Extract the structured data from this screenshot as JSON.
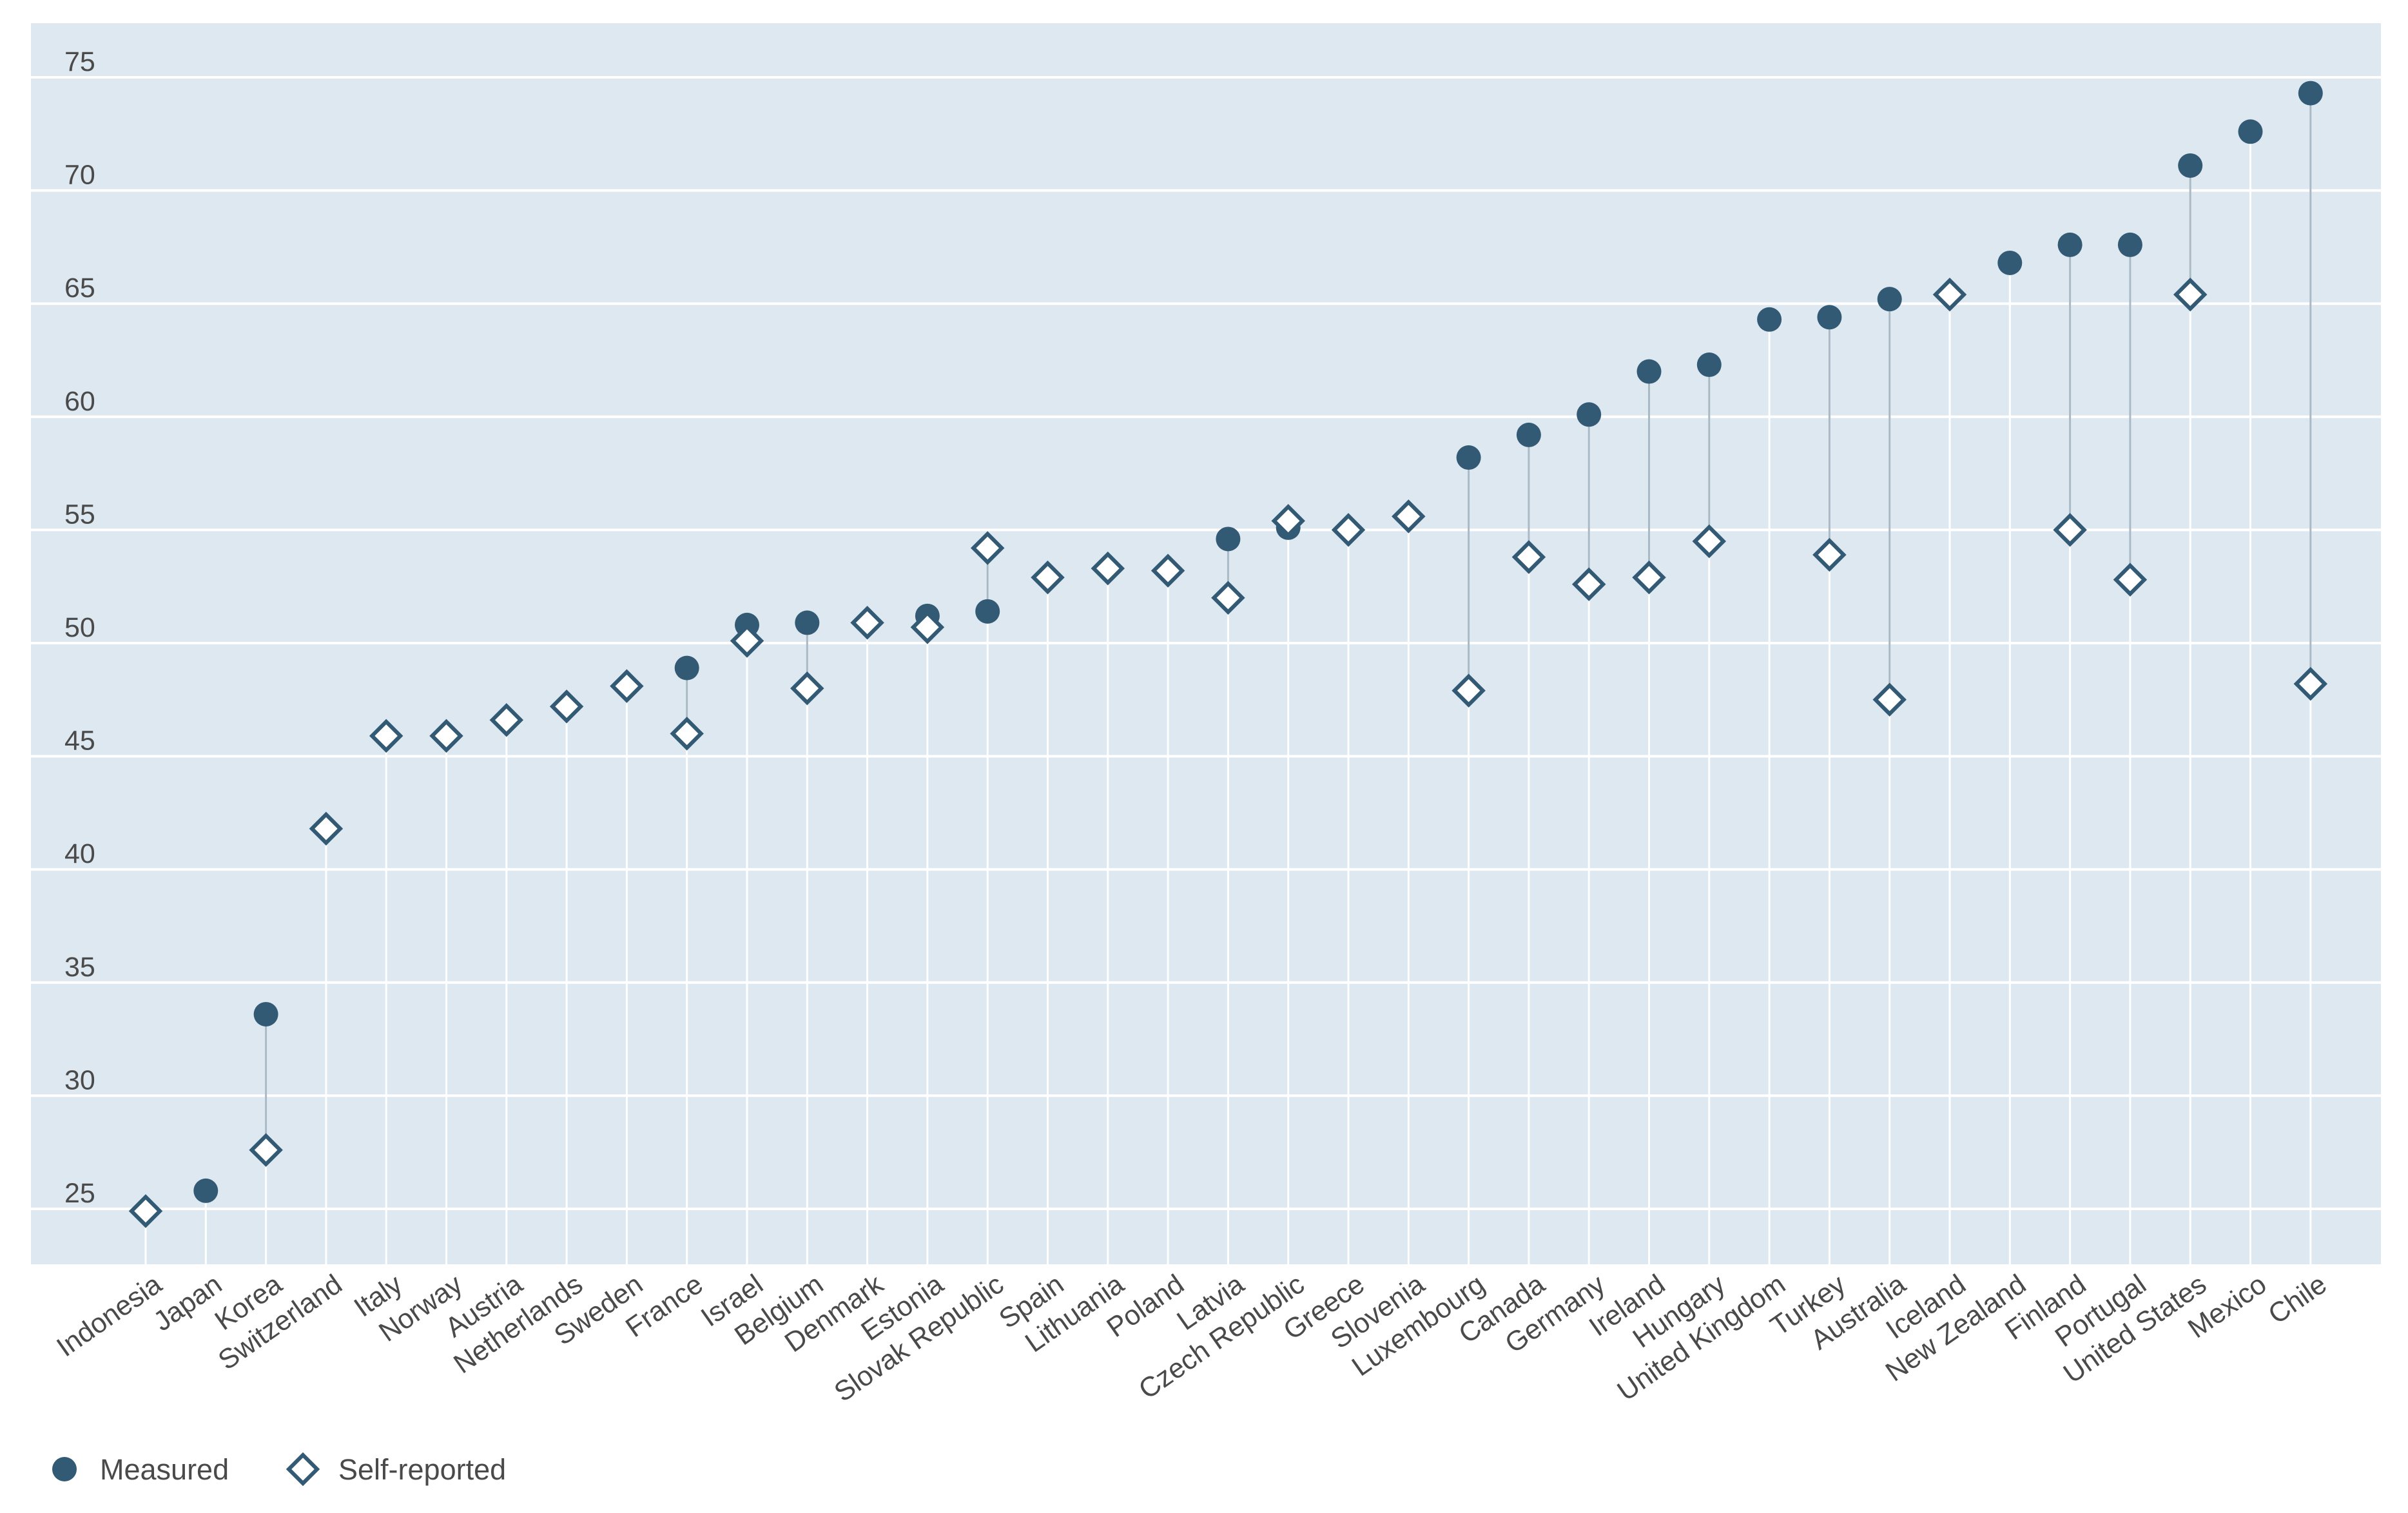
{
  "chart_data": {
    "type": "scatter",
    "title": "",
    "xlabel": "",
    "ylabel": "",
    "ylim": [
      22.5,
      77.5
    ],
    "yticks": [
      25,
      30,
      35,
      40,
      45,
      50,
      55,
      60,
      65,
      70,
      75
    ],
    "grid": true,
    "legend_position": "bottom-left",
    "categories": [
      "Indonesia",
      "Japan",
      "Korea",
      "Switzerland",
      "Italy",
      "Norway",
      "Austria",
      "Netherlands",
      "Sweden",
      "France",
      "Israel",
      "Belgium",
      "Denmark",
      "Estonia",
      "Slovak Republic",
      "Spain",
      "Lithuania",
      "Poland",
      "Latvia",
      "Czech Republic",
      "Greece",
      "Slovenia",
      "Luxembourg",
      "Canada",
      "Germany",
      "Ireland",
      "Hungary",
      "United Kingdom",
      "Turkey",
      "Australia",
      "Iceland",
      "New Zealand",
      "Finland",
      "Portugal",
      "United States",
      "Mexico",
      "Chile"
    ],
    "series": [
      {
        "name": "Measured",
        "marker": "filled-circle",
        "values": [
          null,
          25.8,
          33.6,
          null,
          null,
          null,
          null,
          null,
          null,
          48.9,
          50.8,
          50.9,
          null,
          51.2,
          51.4,
          null,
          null,
          null,
          54.6,
          55.1,
          null,
          null,
          58.2,
          59.2,
          60.1,
          62.0,
          62.3,
          64.3,
          64.4,
          65.2,
          null,
          66.8,
          67.6,
          67.6,
          71.1,
          72.6,
          74.3
        ]
      },
      {
        "name": "Self-reported",
        "marker": "open-diamond",
        "values": [
          24.9,
          null,
          27.6,
          41.8,
          45.9,
          45.9,
          46.6,
          47.2,
          48.1,
          46.0,
          50.1,
          48.0,
          50.9,
          50.7,
          54.2,
          52.9,
          53.3,
          53.2,
          52.0,
          55.4,
          55.0,
          55.6,
          47.9,
          53.8,
          52.6,
          52.9,
          54.5,
          null,
          53.9,
          47.5,
          65.4,
          null,
          55.0,
          52.8,
          65.4,
          null,
          48.2
        ]
      }
    ],
    "colors": {
      "plot_background": "#dde8f0",
      "gridline": "#ffffff",
      "marker": "#335a74",
      "connector": "#a9b9c5"
    }
  }
}
